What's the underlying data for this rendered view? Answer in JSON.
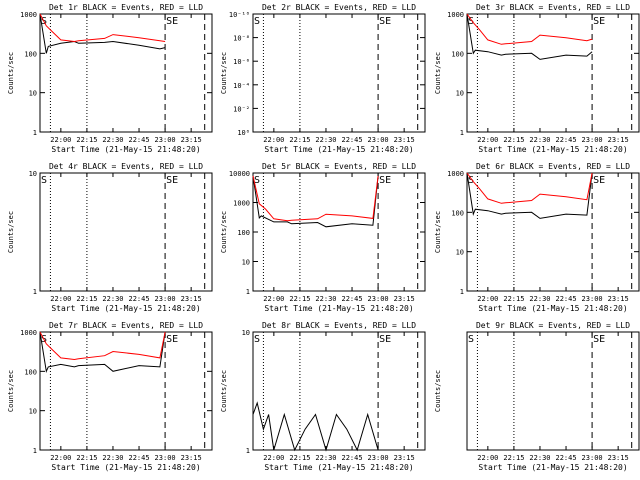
{
  "chart_data": [
    {
      "type": "line",
      "title": "Det 1r BLACK = Events, RED = LLD",
      "xlabel": "Start Time (21-May-15 21:48:20)",
      "ylabel": "Counts/sec",
      "x_ticks": [
        "22:00",
        "22:15",
        "22:30",
        "22:45",
        "23:00",
        "23:15"
      ],
      "y_ticks": [
        "1",
        "10",
        "100",
        "1000"
      ],
      "ylim": [
        1,
        1000
      ],
      "yscale": "log",
      "markers": [
        "S",
        "SE"
      ],
      "series": [
        {
          "color": "#000000",
          "x": [
            21.8,
            21.86,
            21.88,
            22.0,
            22.13,
            22.17,
            22.42,
            22.5,
            22.75,
            22.95,
            23.0
          ],
          "y": [
            1000,
            100,
            150,
            180,
            200,
            180,
            190,
            200,
            160,
            130,
            140
          ]
        },
        {
          "color": "#ff0000",
          "x": [
            21.8,
            21.86,
            21.92,
            22.0,
            22.13,
            22.17,
            22.42,
            22.5,
            22.75,
            22.95,
            23.0
          ],
          "y": [
            1000,
            500,
            350,
            220,
            200,
            210,
            240,
            300,
            250,
            210,
            200
          ]
        }
      ]
    },
    {
      "type": "line",
      "title": "Det 2r BLACK = Events, RED = LLD",
      "xlabel": "Start Time (21-May-15 21:48:20)",
      "ylabel": "Counts/sec",
      "x_ticks": [
        "22:00",
        "22:15",
        "22:30",
        "22:45",
        "23:00",
        "23:15"
      ],
      "y_ticks": [
        "10⁰",
        "10⁻²",
        "10⁻⁴",
        "10⁻⁶",
        "10⁻⁸",
        "10⁻¹⁰"
      ],
      "markers": [
        "S",
        "SE"
      ],
      "series": []
    },
    {
      "type": "line",
      "title": "Det 3r BLACK = Events, RED = LLD",
      "xlabel": "Start Time (21-May-15 21:48:20)",
      "ylabel": "Counts/sec",
      "x_ticks": [
        "22:00",
        "22:15",
        "22:30",
        "22:45",
        "23:00",
        "23:15"
      ],
      "y_ticks": [
        "1",
        "10",
        "100",
        "1000"
      ],
      "ylim": [
        1,
        1000
      ],
      "yscale": "log",
      "markers": [
        "S",
        "SE"
      ],
      "series": [
        {
          "color": "#000000",
          "x": [
            21.8,
            21.86,
            21.88,
            22.0,
            22.13,
            22.17,
            22.42,
            22.5,
            22.75,
            22.95,
            23.0
          ],
          "y": [
            1000,
            100,
            120,
            110,
            90,
            95,
            100,
            70,
            90,
            85,
            110
          ]
        },
        {
          "color": "#ff0000",
          "x": [
            21.8,
            21.86,
            21.92,
            22.0,
            22.13,
            22.17,
            22.42,
            22.5,
            22.75,
            22.95,
            23.0
          ],
          "y": [
            1000,
            600,
            400,
            220,
            170,
            175,
            200,
            290,
            250,
            210,
            230
          ]
        }
      ]
    },
    {
      "type": "line",
      "title": "Det 4r BLACK = Events, RED = LLD",
      "xlabel": "Start Time (21-May-15 21:48:20)",
      "ylabel": "Counts/sec",
      "x_ticks": [
        "22:00",
        "22:15",
        "22:30",
        "22:45",
        "23:00",
        "23:15"
      ],
      "y_ticks": [
        "1",
        "10"
      ],
      "markers": [
        "S",
        "SE"
      ],
      "series": []
    },
    {
      "type": "line",
      "title": "Det 5r BLACK = Events, RED = LLD",
      "xlabel": "Start Time (21-May-15 21:48:20)",
      "ylabel": "Counts/sec",
      "x_ticks": [
        "22:00",
        "22:15",
        "22:30",
        "22:45",
        "23:00",
        "23:15"
      ],
      "y_ticks": [
        "1",
        "10",
        "100",
        "1000",
        "10000"
      ],
      "ylim": [
        1,
        10000
      ],
      "yscale": "log",
      "markers": [
        "S",
        "SE"
      ],
      "series": [
        {
          "color": "#000000",
          "x": [
            21.8,
            21.86,
            21.88,
            22.0,
            22.13,
            22.17,
            22.42,
            22.5,
            22.75,
            22.95,
            23.0
          ],
          "y": [
            8000,
            300,
            350,
            220,
            220,
            190,
            210,
            150,
            190,
            170,
            8000
          ]
        },
        {
          "color": "#ff0000",
          "x": [
            21.8,
            21.86,
            21.92,
            22.0,
            22.13,
            22.17,
            22.42,
            22.5,
            22.75,
            22.95,
            23.0
          ],
          "y": [
            8000,
            900,
            600,
            280,
            240,
            250,
            280,
            400,
            350,
            290,
            8000
          ]
        }
      ]
    },
    {
      "type": "line",
      "title": "Det 6r BLACK = Events, RED = LLD",
      "xlabel": "Start Time (21-May-15 21:48:20)",
      "ylabel": "Counts/sec",
      "x_ticks": [
        "22:00",
        "22:15",
        "22:30",
        "22:45",
        "23:00",
        "23:15"
      ],
      "y_ticks": [
        "1",
        "10",
        "100",
        "1000"
      ],
      "ylim": [
        1,
        1000
      ],
      "yscale": "log",
      "markers": [
        "S",
        "SE"
      ],
      "series": [
        {
          "color": "#000000",
          "x": [
            21.8,
            21.86,
            21.88,
            22.0,
            22.13,
            22.17,
            22.42,
            22.5,
            22.75,
            22.95,
            23.0
          ],
          "y": [
            1000,
            90,
            120,
            110,
            90,
            95,
            100,
            70,
            90,
            85,
            1000
          ]
        },
        {
          "color": "#ff0000",
          "x": [
            21.8,
            21.86,
            21.92,
            22.0,
            22.13,
            22.17,
            22.42,
            22.5,
            22.75,
            22.95,
            23.0
          ],
          "y": [
            1000,
            600,
            400,
            220,
            170,
            175,
            200,
            290,
            250,
            210,
            1000
          ]
        }
      ]
    },
    {
      "type": "line",
      "title": "Det 7r BLACK = Events, RED = LLD",
      "xlabel": "Start Time (21-May-15 21:48:20)",
      "ylabel": "Counts/sec",
      "x_ticks": [
        "22:00",
        "22:15",
        "22:30",
        "22:45",
        "23:00",
        "23:15"
      ],
      "y_ticks": [
        "1",
        "10",
        "100",
        "1000"
      ],
      "ylim": [
        1,
        1000
      ],
      "yscale": "log",
      "markers": [
        "S",
        "SE"
      ],
      "series": [
        {
          "color": "#000000",
          "x": [
            21.8,
            21.86,
            21.88,
            22.0,
            22.13,
            22.17,
            22.42,
            22.5,
            22.75,
            22.95,
            23.0
          ],
          "y": [
            1000,
            100,
            130,
            150,
            130,
            140,
            150,
            100,
            140,
            130,
            1000
          ]
        },
        {
          "color": "#ff0000",
          "x": [
            21.8,
            21.86,
            21.92,
            22.0,
            22.13,
            22.17,
            22.42,
            22.5,
            22.75,
            22.95,
            23.0
          ],
          "y": [
            1000,
            500,
            350,
            220,
            200,
            210,
            250,
            320,
            270,
            220,
            1000
          ]
        }
      ]
    },
    {
      "type": "line",
      "title": "Det 8r BLACK = Events, RED = LLD",
      "xlabel": "Start Time (21-May-15 21:48:20)",
      "ylabel": "Counts/sec",
      "x_ticks": [
        "22:00",
        "22:15",
        "22:30",
        "22:45",
        "23:00",
        "23:15"
      ],
      "y_ticks": [
        "1",
        "10"
      ],
      "ylim": [
        1,
        10
      ],
      "yscale": "log",
      "markers": [
        "S",
        "SE"
      ],
      "series": [
        {
          "color": "#000000",
          "x": [
            21.8,
            21.84,
            21.9,
            21.95,
            22.0,
            22.1,
            22.2,
            22.3,
            22.4,
            22.5,
            22.6,
            22.7,
            22.8,
            22.9,
            23.0
          ],
          "y": [
            2,
            2.5,
            1.5,
            2,
            1,
            2,
            1,
            1.5,
            2,
            1,
            2,
            1.5,
            1,
            2,
            1
          ]
        }
      ]
    },
    {
      "type": "line",
      "title": "Det 9r BLACK = Events, RED = LLD",
      "xlabel": "Start Time (21-May-15 21:48:20)",
      "ylabel": "Counts/sec",
      "x_ticks": [
        "22:00",
        "22:15",
        "22:30",
        "22:45",
        "23:00",
        "23:15"
      ],
      "y_ticks": [],
      "markers": [
        "S",
        "SE"
      ],
      "series": []
    }
  ]
}
